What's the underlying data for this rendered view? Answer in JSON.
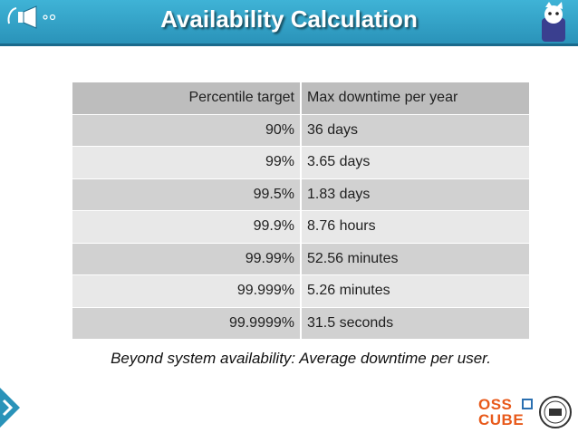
{
  "header": {
    "title": "Availability Calculation"
  },
  "table": {
    "headers": [
      "Percentile target",
      "Max downtime per year"
    ],
    "rows": [
      [
        "90%",
        "36 days"
      ],
      [
        "99%",
        "3.65 days"
      ],
      [
        "99.5%",
        "1.83 days"
      ],
      [
        "99.9%",
        "8.76 hours"
      ],
      [
        "99.99%",
        "52.56 minutes"
      ],
      [
        "99.999%",
        "5.26 minutes"
      ],
      [
        "99.9999%",
        "31.5 seconds"
      ]
    ]
  },
  "caption": "Beyond system availability: Average downtime per user.",
  "logo": {
    "line1": "OSS",
    "line2": "CUBE"
  },
  "icons": {
    "left": "megaphone-icon",
    "right": "mascot-icon",
    "nav": "chevron-right-icon",
    "seal": "seal-icon"
  },
  "colors": {
    "header": "#2a93b9",
    "table_head": "#bdbdbd",
    "row_dark": "#d1d1d1",
    "row_light": "#e8e8e8",
    "logo_orange": "#e85a1b",
    "logo_blue": "#2a6fb0"
  }
}
